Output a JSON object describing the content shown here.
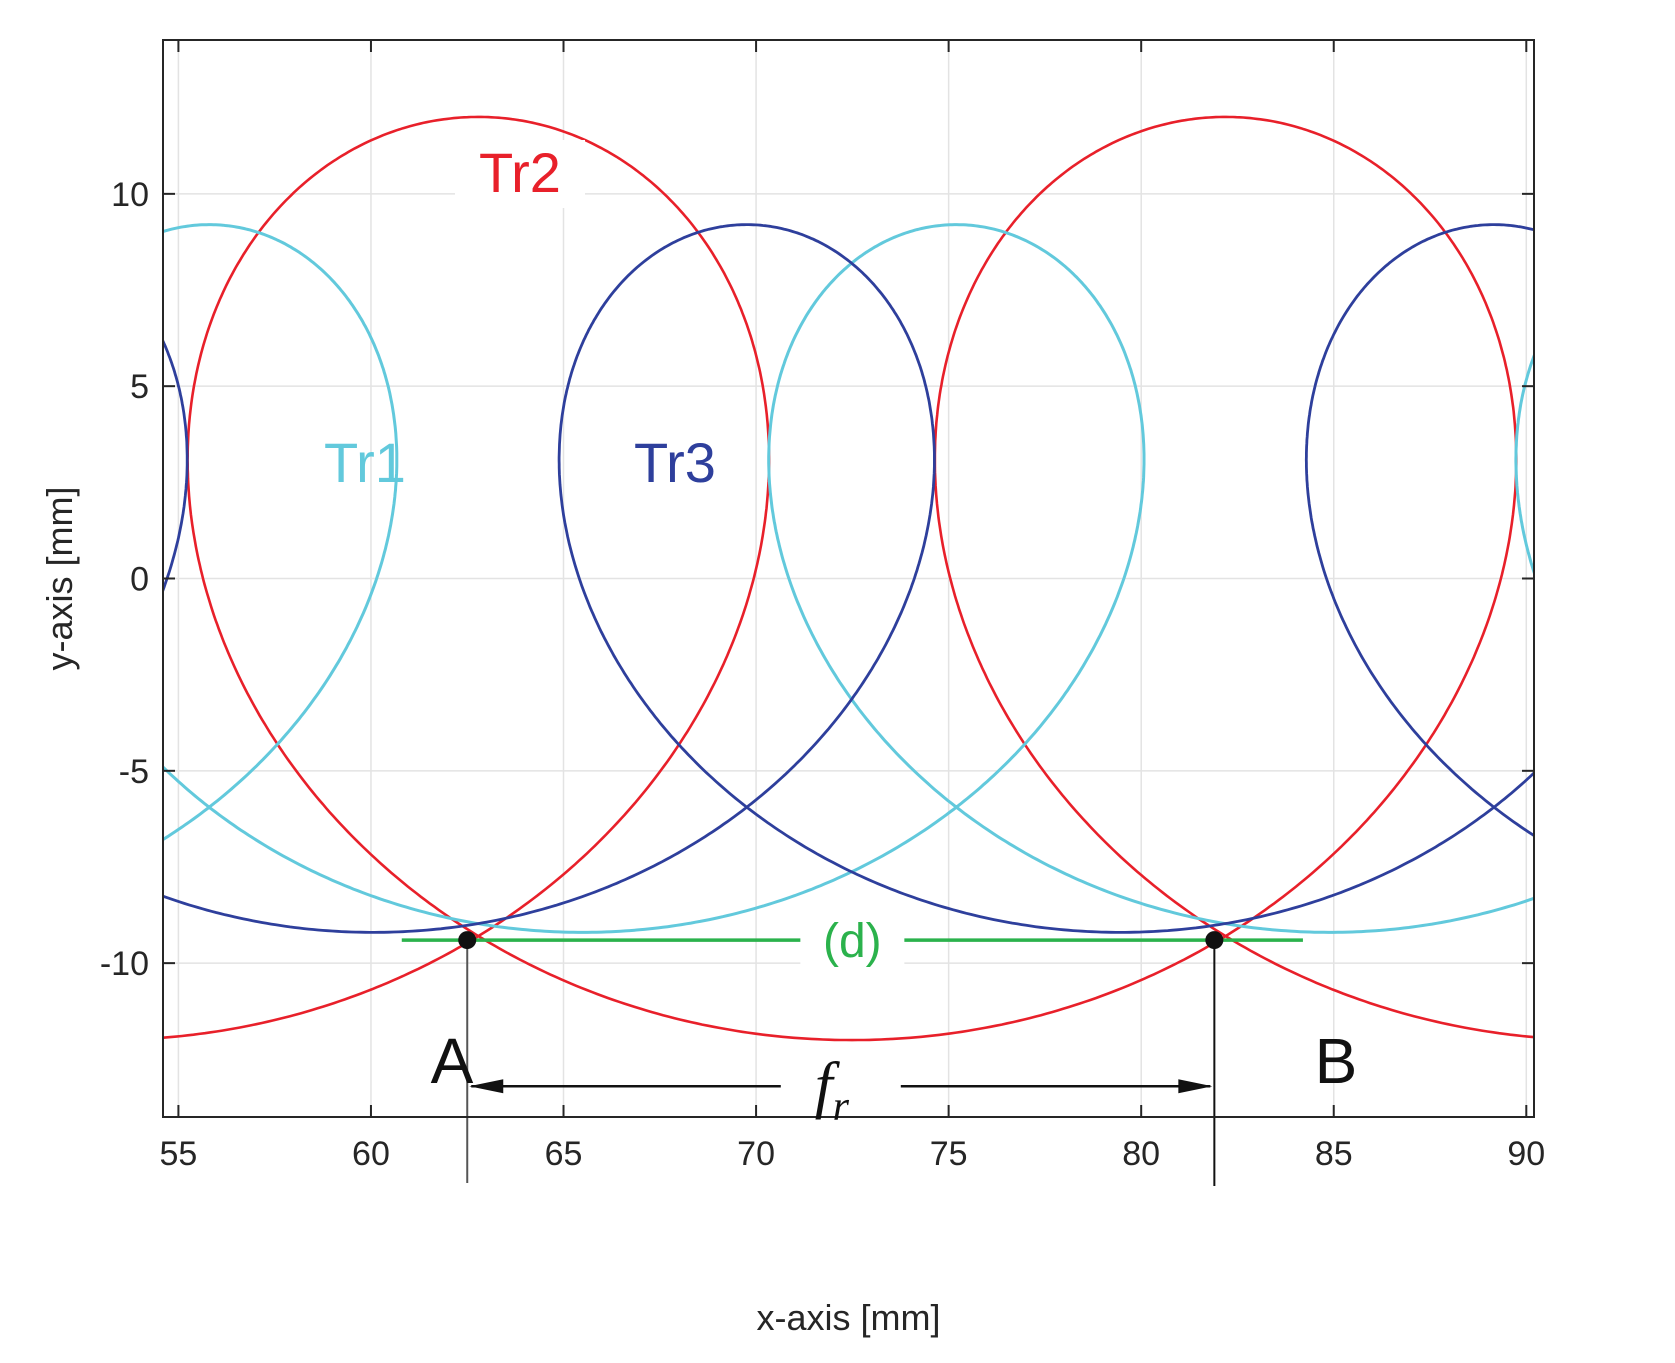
{
  "chart_data": {
    "type": "line",
    "title": "",
    "xlabel": "x-axis [mm]",
    "ylabel": "y-axis [mm]",
    "xlim": [
      54.6,
      90.2
    ],
    "ylim": [
      -14.0,
      14.0
    ],
    "grid": true,
    "xticks": [
      55,
      60,
      65,
      70,
      75,
      80,
      85,
      90
    ],
    "yticks": [
      -10,
      -5,
      0,
      5,
      10
    ],
    "xtick_labels": [
      "55",
      "60",
      "65",
      "70",
      "75",
      "80",
      "85",
      "90"
    ],
    "ytick_labels": [
      "-10",
      "-5",
      "0",
      "5",
      "10"
    ],
    "series": [
      {
        "name": "Tr2",
        "color": "#e8202a",
        "shape": "prolate trochoid loop",
        "y_range": [
          -12,
          12
        ],
        "loop_centers_x": [
          62.8,
          82.2
        ],
        "inner_loop_x": [
          68.9,
          75.2
        ],
        "pitch_mm": 19.4
      },
      {
        "name": "Tr1",
        "color": "#62c9dc",
        "shape": "prolate trochoid loop",
        "y_range": [
          -9.2,
          9.2
        ],
        "loop_centers_x": [
          55.9,
          75.2
        ],
        "pitch_mm": 19.4
      },
      {
        "name": "Tr3",
        "color": "#2e3f9c",
        "shape": "prolate trochoid loop",
        "y_range": [
          -9.2,
          9.2
        ],
        "loop_centers_x": [
          69.9,
          89.2
        ],
        "pitch_mm": 19.4
      },
      {
        "name": "(d)",
        "color": "#2bb24c",
        "x": [
          60.8,
          84.2
        ],
        "y": [
          -9.4,
          -9.4
        ]
      }
    ],
    "annotations": {
      "labels": {
        "tr1": "Tr1",
        "tr2": "Tr2",
        "tr3": "Tr3",
        "d": "(d)",
        "point_a": "A",
        "point_b": "B",
        "fr": "f",
        "fr_sub": "r"
      },
      "points": [
        {
          "name": "A",
          "x": 62.5,
          "y": -9.4
        },
        {
          "name": "B",
          "x": 81.9,
          "y": -9.4
        }
      ],
      "dimension_fr": {
        "x_start": 62.5,
        "x_end": 81.9,
        "y": -13.2
      }
    }
  }
}
